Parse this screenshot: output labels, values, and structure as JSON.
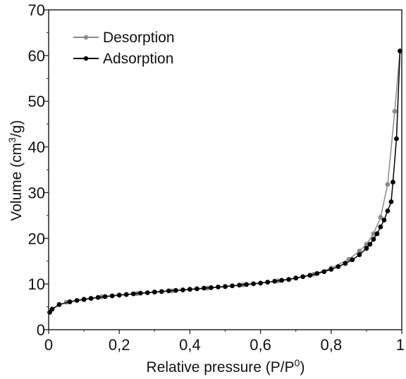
{
  "chart_data": {
    "type": "scatter",
    "title": "",
    "xlabel": "Relative pressure (P/P0)",
    "xlabel_parts": {
      "main": "Relative pressure (P/P",
      "sup": "0",
      "end": ")"
    },
    "ylabel": "Volume (cm3/g)",
    "ylabel_parts": {
      "main": "Volume (cm",
      "sup": "3",
      "end": "/g)"
    },
    "xlim": [
      0,
      1
    ],
    "ylim": [
      0,
      70
    ],
    "grid": false,
    "legend_position": "top-left",
    "x_ticks": [
      {
        "value": 0,
        "label": "0"
      },
      {
        "value": 0.2,
        "label": "0,2"
      },
      {
        "value": 0.4,
        "label": "0,4"
      },
      {
        "value": 0.6,
        "label": "0,6"
      },
      {
        "value": 0.8,
        "label": "0,8"
      },
      {
        "value": 1,
        "label": "1"
      }
    ],
    "y_ticks": [
      {
        "value": 0,
        "label": "0"
      },
      {
        "value": 10,
        "label": "10"
      },
      {
        "value": 20,
        "label": "20"
      },
      {
        "value": 30,
        "label": "30"
      },
      {
        "value": 40,
        "label": "40"
      },
      {
        "value": 50,
        "label": "50"
      },
      {
        "value": 60,
        "label": "60"
      },
      {
        "value": 70,
        "label": "70"
      }
    ],
    "series": [
      {
        "name": "Desorption",
        "color": "#8a8a8a",
        "points": [
          [
            0.05,
            6.0
          ],
          [
            0.1,
            6.7
          ],
          [
            0.15,
            7.2
          ],
          [
            0.2,
            7.6
          ],
          [
            0.25,
            7.9
          ],
          [
            0.3,
            8.2
          ],
          [
            0.35,
            8.5
          ],
          [
            0.4,
            8.8
          ],
          [
            0.45,
            9.1
          ],
          [
            0.5,
            9.4
          ],
          [
            0.55,
            9.8
          ],
          [
            0.6,
            10.2
          ],
          [
            0.65,
            10.7
          ],
          [
            0.7,
            11.3
          ],
          [
            0.75,
            12.1
          ],
          [
            0.8,
            13.5
          ],
          [
            0.85,
            15.4
          ],
          [
            0.88,
            17.2
          ],
          [
            0.9,
            18.7
          ],
          [
            0.92,
            21.0
          ],
          [
            0.94,
            24.6
          ],
          [
            0.96,
            31.8
          ],
          [
            0.98,
            47.8
          ],
          [
            0.995,
            61.0
          ]
        ]
      },
      {
        "name": "Adsorption",
        "color": "#000000",
        "points": [
          [
            0.003,
            3.8
          ],
          [
            0.01,
            4.5
          ],
          [
            0.03,
            5.5
          ],
          [
            0.06,
            6.1
          ],
          [
            0.08,
            6.4
          ],
          [
            0.1,
            6.6
          ],
          [
            0.12,
            6.85
          ],
          [
            0.14,
            7.05
          ],
          [
            0.16,
            7.25
          ],
          [
            0.18,
            7.4
          ],
          [
            0.2,
            7.55
          ],
          [
            0.22,
            7.7
          ],
          [
            0.24,
            7.85
          ],
          [
            0.26,
            8.0
          ],
          [
            0.28,
            8.1
          ],
          [
            0.3,
            8.25
          ],
          [
            0.32,
            8.35
          ],
          [
            0.34,
            8.5
          ],
          [
            0.36,
            8.6
          ],
          [
            0.38,
            8.7
          ],
          [
            0.4,
            8.85
          ],
          [
            0.42,
            8.95
          ],
          [
            0.44,
            9.1
          ],
          [
            0.46,
            9.2
          ],
          [
            0.48,
            9.35
          ],
          [
            0.5,
            9.45
          ],
          [
            0.52,
            9.6
          ],
          [
            0.54,
            9.75
          ],
          [
            0.56,
            9.9
          ],
          [
            0.58,
            10.05
          ],
          [
            0.6,
            10.2
          ],
          [
            0.62,
            10.4
          ],
          [
            0.64,
            10.6
          ],
          [
            0.66,
            10.8
          ],
          [
            0.68,
            11.0
          ],
          [
            0.7,
            11.3
          ],
          [
            0.72,
            11.6
          ],
          [
            0.74,
            11.9
          ],
          [
            0.76,
            12.3
          ],
          [
            0.78,
            12.7
          ],
          [
            0.8,
            13.2
          ],
          [
            0.82,
            13.8
          ],
          [
            0.84,
            14.5
          ],
          [
            0.86,
            15.3
          ],
          [
            0.88,
            16.4
          ],
          [
            0.9,
            17.8
          ],
          [
            0.91,
            18.7
          ],
          [
            0.92,
            19.8
          ],
          [
            0.93,
            21.0
          ],
          [
            0.94,
            22.5
          ],
          [
            0.95,
            24.0
          ],
          [
            0.96,
            26.0
          ],
          [
            0.97,
            28.0
          ],
          [
            0.975,
            32.3
          ],
          [
            0.985,
            41.8
          ],
          [
            0.995,
            61.0
          ]
        ]
      }
    ]
  }
}
